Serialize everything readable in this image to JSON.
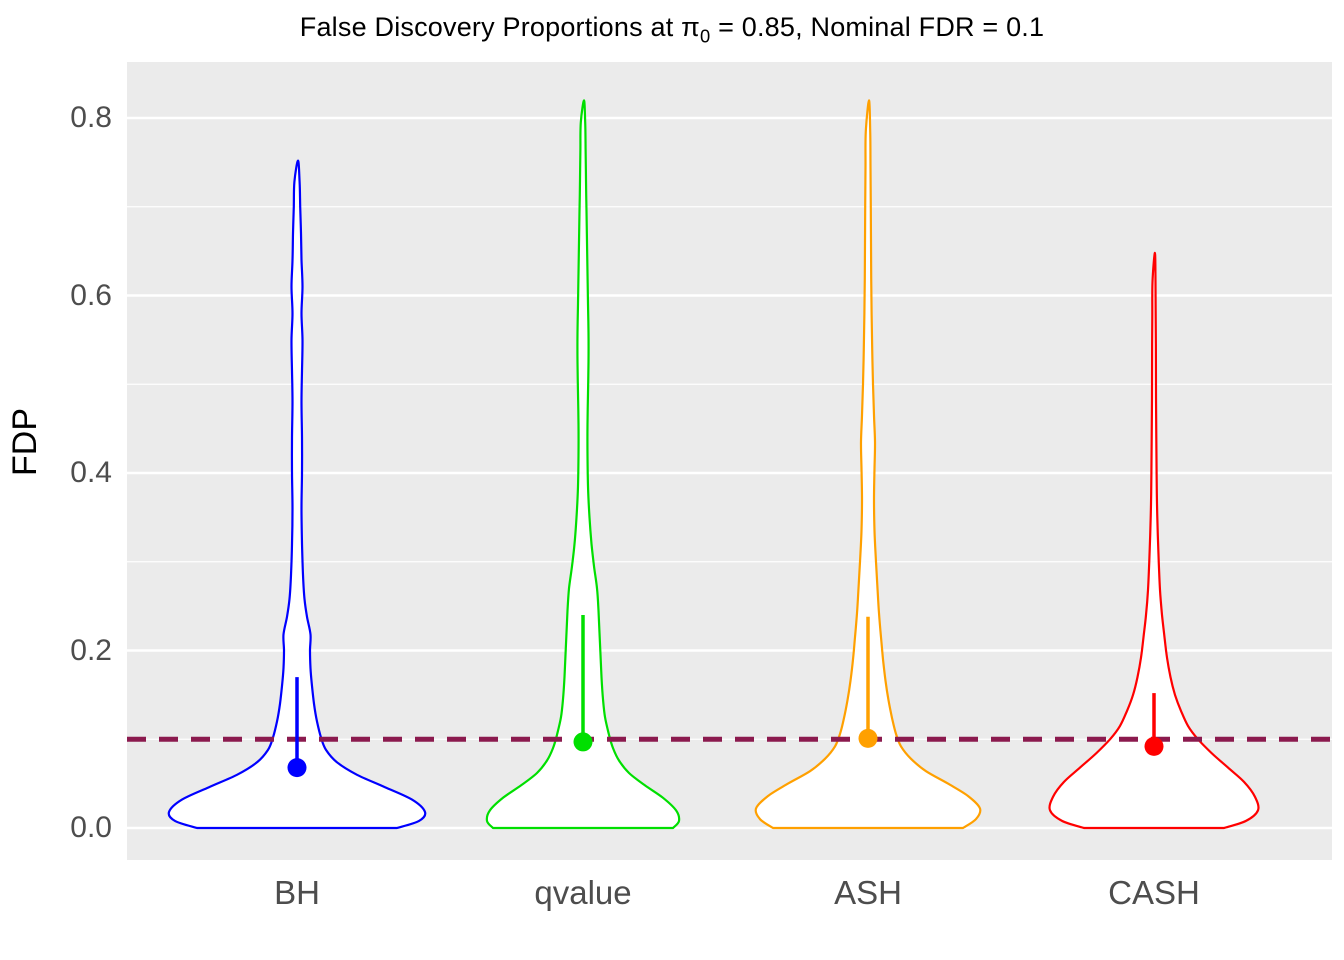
{
  "title": {
    "part1": "False Discovery Proportions at ",
    "pi": "π",
    "sub": "0",
    "part2": " = 0.85, Nominal FDR = 0.1"
  },
  "style": {
    "panel_background": "#EBEBEB",
    "grid_color": "#FFFFFF",
    "axis_text_color": "#4D4D4D",
    "title_color": "#000000"
  },
  "chart_data": {
    "type": "violin",
    "title": "False Discovery Proportions at π0 = 0.85, Nominal FDR = 0.1",
    "xlabel": "",
    "ylabel": "FDP",
    "ylim": [
      -0.036,
      0.863
    ],
    "grid": true,
    "legend": "none",
    "y_ticks": [
      {
        "v": 0.0,
        "label": "0.0"
      },
      {
        "v": 0.2,
        "label": "0.2"
      },
      {
        "v": 0.4,
        "label": "0.4"
      },
      {
        "v": 0.6,
        "label": "0.6"
      },
      {
        "v": 0.8,
        "label": "0.8"
      }
    ],
    "y_minor": [
      0.1,
      0.3,
      0.5,
      0.7
    ],
    "categories": [
      "BH",
      "qvalue",
      "ASH",
      "CASH"
    ],
    "fdr_line": {
      "value": 0.1,
      "color": "#8B1A4E",
      "style": "dashed"
    },
    "groups": [
      {
        "name": "BH",
        "color": "#0000FF",
        "mean_point": 0.068,
        "segment_top": 0.17,
        "min": 0.0,
        "max": 0.752,
        "profile": [
          [
            0.0,
            100
          ],
          [
            0.008,
            122
          ],
          [
            0.018,
            128
          ],
          [
            0.032,
            115
          ],
          [
            0.046,
            88
          ],
          [
            0.06,
            60
          ],
          [
            0.074,
            40
          ],
          [
            0.088,
            29
          ],
          [
            0.102,
            24
          ],
          [
            0.12,
            20
          ],
          [
            0.14,
            17
          ],
          [
            0.16,
            15
          ],
          [
            0.18,
            13.5
          ],
          [
            0.2,
            13
          ],
          [
            0.218,
            13.5
          ],
          [
            0.238,
            10
          ],
          [
            0.258,
            7.5
          ],
          [
            0.285,
            6
          ],
          [
            0.32,
            5
          ],
          [
            0.36,
            4.5
          ],
          [
            0.4,
            5
          ],
          [
            0.44,
            5
          ],
          [
            0.48,
            4.5
          ],
          [
            0.515,
            5
          ],
          [
            0.55,
            5.5
          ],
          [
            0.58,
            4.5
          ],
          [
            0.61,
            5.5
          ],
          [
            0.64,
            4.5
          ],
          [
            0.67,
            4
          ],
          [
            0.7,
            3.2
          ],
          [
            0.728,
            2.6
          ],
          [
            0.752,
            1
          ]
        ]
      },
      {
        "name": "qvalue",
        "color": "#00DF00",
        "mean_point": 0.097,
        "segment_top": 0.24,
        "min": 0.0,
        "max": 0.82,
        "profile": [
          [
            0.0,
            90
          ],
          [
            0.008,
            96
          ],
          [
            0.02,
            93
          ],
          [
            0.034,
            80
          ],
          [
            0.048,
            62
          ],
          [
            0.062,
            46
          ],
          [
            0.076,
            36
          ],
          [
            0.09,
            30
          ],
          [
            0.105,
            26
          ],
          [
            0.125,
            22
          ],
          [
            0.145,
            20
          ],
          [
            0.17,
            18.5
          ],
          [
            0.195,
            17.5
          ],
          [
            0.22,
            16.5
          ],
          [
            0.245,
            15.5
          ],
          [
            0.27,
            14
          ],
          [
            0.295,
            11
          ],
          [
            0.32,
            8.5
          ],
          [
            0.35,
            6.5
          ],
          [
            0.385,
            5
          ],
          [
            0.42,
            4.5
          ],
          [
            0.455,
            4.5
          ],
          [
            0.49,
            5
          ],
          [
            0.525,
            5.5
          ],
          [
            0.558,
            5.5
          ],
          [
            0.59,
            5
          ],
          [
            0.625,
            4.5
          ],
          [
            0.66,
            4
          ],
          [
            0.695,
            3.5
          ],
          [
            0.73,
            3
          ],
          [
            0.765,
            2.6
          ],
          [
            0.795,
            2.2
          ],
          [
            0.82,
            1
          ]
        ]
      },
      {
        "name": "ASH",
        "color": "#FFA000",
        "mean_point": 0.101,
        "segment_top": 0.238,
        "min": 0.0,
        "max": 0.82,
        "profile": [
          [
            0.0,
            95
          ],
          [
            0.01,
            108
          ],
          [
            0.022,
            112
          ],
          [
            0.036,
            100
          ],
          [
            0.05,
            80
          ],
          [
            0.064,
            58
          ],
          [
            0.078,
            43
          ],
          [
            0.092,
            33
          ],
          [
            0.106,
            28
          ],
          [
            0.124,
            24
          ],
          [
            0.144,
            20.5
          ],
          [
            0.166,
            17.5
          ],
          [
            0.19,
            15
          ],
          [
            0.215,
            13
          ],
          [
            0.242,
            11
          ],
          [
            0.27,
            9.5
          ],
          [
            0.3,
            8
          ],
          [
            0.335,
            6.5
          ],
          [
            0.37,
            6
          ],
          [
            0.405,
            6.5
          ],
          [
            0.435,
            7
          ],
          [
            0.465,
            6
          ],
          [
            0.5,
            5
          ],
          [
            0.54,
            4.2
          ],
          [
            0.58,
            3.6
          ],
          [
            0.62,
            3.2
          ],
          [
            0.66,
            3
          ],
          [
            0.7,
            2.8
          ],
          [
            0.745,
            2.5
          ],
          [
            0.785,
            2.2
          ],
          [
            0.82,
            1
          ]
        ]
      },
      {
        "name": "CASH",
        "color": "#FF0000",
        "mean_point": 0.092,
        "segment_top": 0.152,
        "min": 0.0,
        "max": 0.648,
        "profile": [
          [
            0.0,
            70
          ],
          [
            0.008,
            92
          ],
          [
            0.02,
            104
          ],
          [
            0.035,
            101
          ],
          [
            0.052,
            90
          ],
          [
            0.068,
            74
          ],
          [
            0.084,
            58
          ],
          [
            0.1,
            44
          ],
          [
            0.115,
            34
          ],
          [
            0.132,
            27
          ],
          [
            0.15,
            21
          ],
          [
            0.17,
            16.5
          ],
          [
            0.192,
            13
          ],
          [
            0.215,
            10.5
          ],
          [
            0.24,
            8
          ],
          [
            0.268,
            6
          ],
          [
            0.298,
            4.8
          ],
          [
            0.33,
            3.8
          ],
          [
            0.365,
            3
          ],
          [
            0.4,
            2.6
          ],
          [
            0.44,
            2.3
          ],
          [
            0.485,
            2
          ],
          [
            0.53,
            1.9
          ],
          [
            0.575,
            1.7
          ],
          [
            0.615,
            1.5
          ],
          [
            0.648,
            0.9
          ]
        ]
      }
    ]
  }
}
